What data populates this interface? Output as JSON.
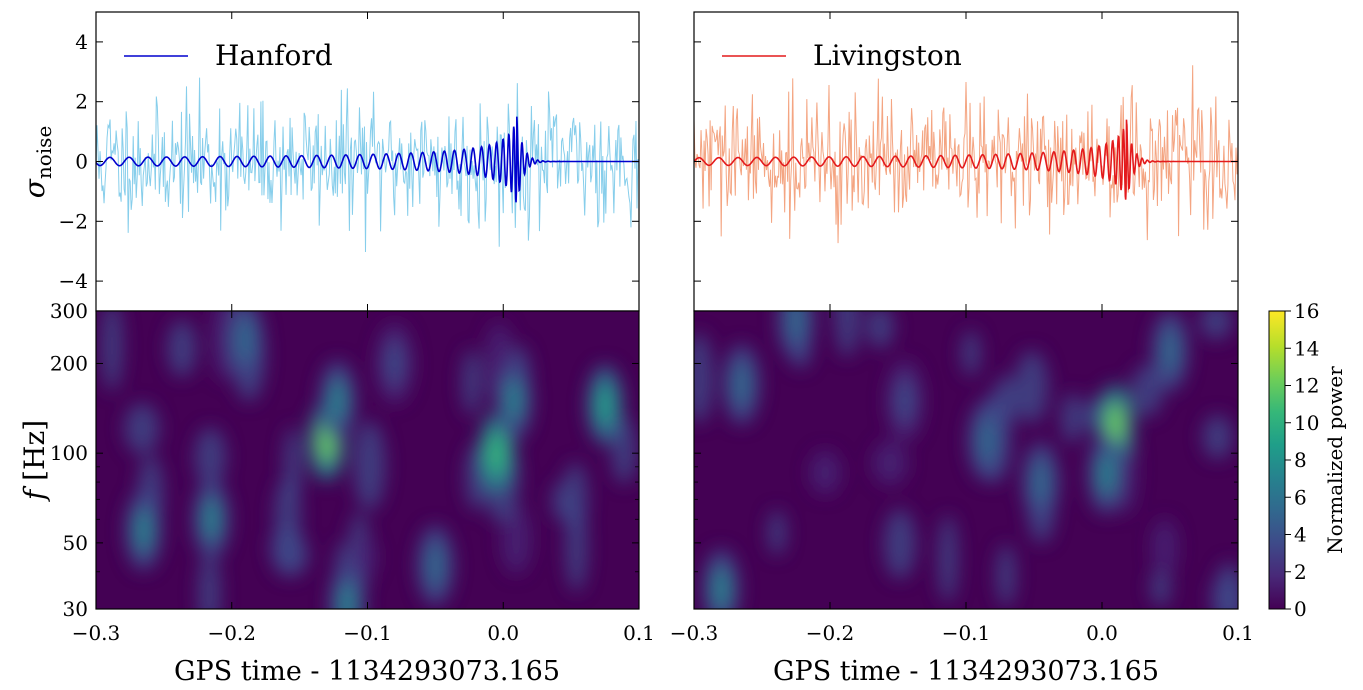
{
  "figure": {
    "left_title": "",
    "right_title": ""
  },
  "colors": {
    "hanford_data": "#87ceeb",
    "hanford_model": "#0000cd",
    "livingston_data": "#f4a582",
    "livingston_model": "#e31a1c",
    "viridis": [
      "#440154",
      "#482878",
      "#3e4a89",
      "#31688e",
      "#26828e",
      "#1f9e89",
      "#35b779",
      "#6ece58",
      "#b5de2b",
      "#fde725"
    ]
  },
  "chart_data": [
    {
      "type": "line",
      "panel": "top-left",
      "legend": {
        "label": "Hanford",
        "placement": "top-left"
      },
      "ylabel": "σ_noise",
      "xlim": [
        -0.3,
        0.1
      ],
      "ylim": [
        -5,
        5
      ],
      "yticks": [
        -4,
        -2,
        0,
        2,
        4
      ],
      "ytick_labels": [
        "−4",
        "−2",
        "0",
        "2",
        "4"
      ],
      "series": [
        {
          "role": "whitened-data",
          "noise_std": 1.0,
          "seed": 11
        },
        {
          "role": "waveform",
          "t_merger": 0.01,
          "peak_amp": 1.5
        }
      ]
    },
    {
      "type": "line",
      "panel": "top-right",
      "legend": {
        "label": "Livingston",
        "placement": "top-left"
      },
      "xlim": [
        -0.3,
        0.1
      ],
      "ylim": [
        -5,
        5
      ],
      "series": [
        {
          "role": "whitened-data",
          "noise_std": 1.0,
          "seed": 29
        },
        {
          "role": "waveform",
          "t_merger": 0.018,
          "peak_amp": 1.4
        }
      ]
    },
    {
      "type": "heatmap",
      "panel": "bottom-left",
      "ylabel": "f [Hz]",
      "xlabel": "GPS time - 1134293073.165",
      "xlim": [
        -0.3,
        0.1
      ],
      "xticks": [
        -0.3,
        -0.2,
        -0.1,
        0.0,
        0.1
      ],
      "xtick_labels": [
        "−0.3",
        "−0.2",
        "−0.1",
        "0.0",
        "0.1"
      ],
      "ylim": [
        30,
        300
      ],
      "yscale": "log",
      "yticks": [
        30,
        50,
        100,
        200,
        300
      ],
      "ytick_labels": [
        "30",
        "50",
        "100",
        "200",
        "300"
      ],
      "blobs": [
        {
          "t": -0.13,
          "f": 110,
          "power": 12
        },
        {
          "t": -0.122,
          "f": 150,
          "power": 7
        },
        {
          "t": -0.005,
          "f": 100,
          "power": 11
        },
        {
          "t": 0.008,
          "f": 150,
          "power": 7
        },
        {
          "t": 0.075,
          "f": 145,
          "power": 8
        },
        {
          "t": -0.265,
          "f": 55,
          "power": 7
        },
        {
          "t": -0.215,
          "f": 60,
          "power": 7
        },
        {
          "t": -0.115,
          "f": 31,
          "power": 7
        },
        {
          "t": -0.05,
          "f": 42,
          "power": 5
        },
        {
          "t": -0.19,
          "f": 240,
          "power": 5
        },
        {
          "t": -0.08,
          "f": 200,
          "power": 4
        }
      ]
    },
    {
      "type": "heatmap",
      "panel": "bottom-right",
      "xlabel": "GPS time - 1134293073.165",
      "xlim": [
        -0.3,
        0.1
      ],
      "xticks": [
        -0.3,
        -0.2,
        -0.1,
        0.0,
        0.1
      ],
      "xtick_labels": [
        "−0.3",
        "−0.2",
        "−0.1",
        "0.0",
        "0.1"
      ],
      "ylim": [
        30,
        300
      ],
      "yscale": "log",
      "blobs": [
        {
          "t": 0.01,
          "f": 125,
          "power": 13
        },
        {
          "t": 0.003,
          "f": 85,
          "power": 7
        },
        {
          "t": -0.28,
          "f": 35,
          "power": 7
        },
        {
          "t": -0.265,
          "f": 170,
          "power": 5
        },
        {
          "t": -0.225,
          "f": 280,
          "power": 5
        },
        {
          "t": -0.085,
          "f": 110,
          "power": 5
        },
        {
          "t": -0.045,
          "f": 80,
          "power": 5
        },
        {
          "t": 0.05,
          "f": 220,
          "power": 6
        },
        {
          "t": -0.145,
          "f": 150,
          "power": 4
        }
      ]
    }
  ],
  "colorbar": {
    "label": "Normalized power",
    "range": [
      0,
      16
    ],
    "ticks": [
      "0",
      "2",
      "4",
      "6",
      "8",
      "10",
      "12",
      "14",
      "16"
    ]
  }
}
